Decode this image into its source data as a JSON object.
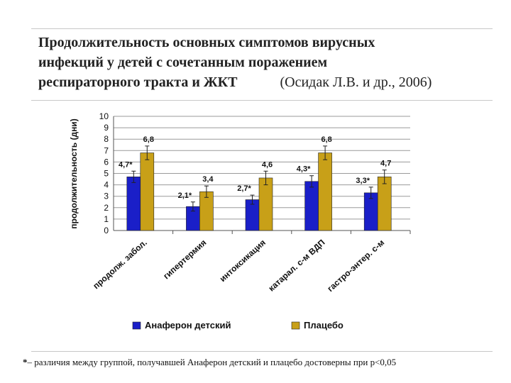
{
  "title_lines": [
    "Продолжительность основных симптомов вирусных",
    "инфекций у детей с сочетанным поражением",
    "респираторного тракта и ЖКТ"
  ],
  "citation": "(Осидак Л.В. и др., 2006)",
  "footnote": {
    "marker": "*",
    "text": "– различия между группой, получавшей Анаферон детский и плацебо достоверны при р<0,05"
  },
  "colors": {
    "series_1": "#1a1fc8",
    "series_2": "#c8a018"
  },
  "chart_data": {
    "type": "bar",
    "ylabel": "продолжительность (дни)",
    "ylim": [
      0,
      10
    ],
    "yticks": [
      0,
      1,
      2,
      3,
      4,
      5,
      6,
      7,
      8,
      9,
      10
    ],
    "grid": true,
    "legend_position": "bottom",
    "categories": [
      "продолж. забол.",
      "гипертермия",
      "интоксикация",
      "катарал. с-м ВДП",
      "гастро-энтер. с-м"
    ],
    "series": [
      {
        "name": "Анаферон детский",
        "values": [
          4.7,
          2.1,
          2.7,
          4.3,
          3.3
        ],
        "labels": [
          "4,7*",
          "2,1*",
          "2,7*",
          "4,3*",
          "3,3*"
        ],
        "errors": [
          0.5,
          0.4,
          0.4,
          0.5,
          0.5
        ]
      },
      {
        "name": "Плацебо",
        "values": [
          6.8,
          3.4,
          4.6,
          6.8,
          4.7
        ],
        "labels": [
          "6,8",
          "3,4",
          "4,6",
          "6,8",
          "4,7"
        ],
        "errors": [
          0.6,
          0.5,
          0.6,
          0.6,
          0.6
        ]
      }
    ]
  }
}
